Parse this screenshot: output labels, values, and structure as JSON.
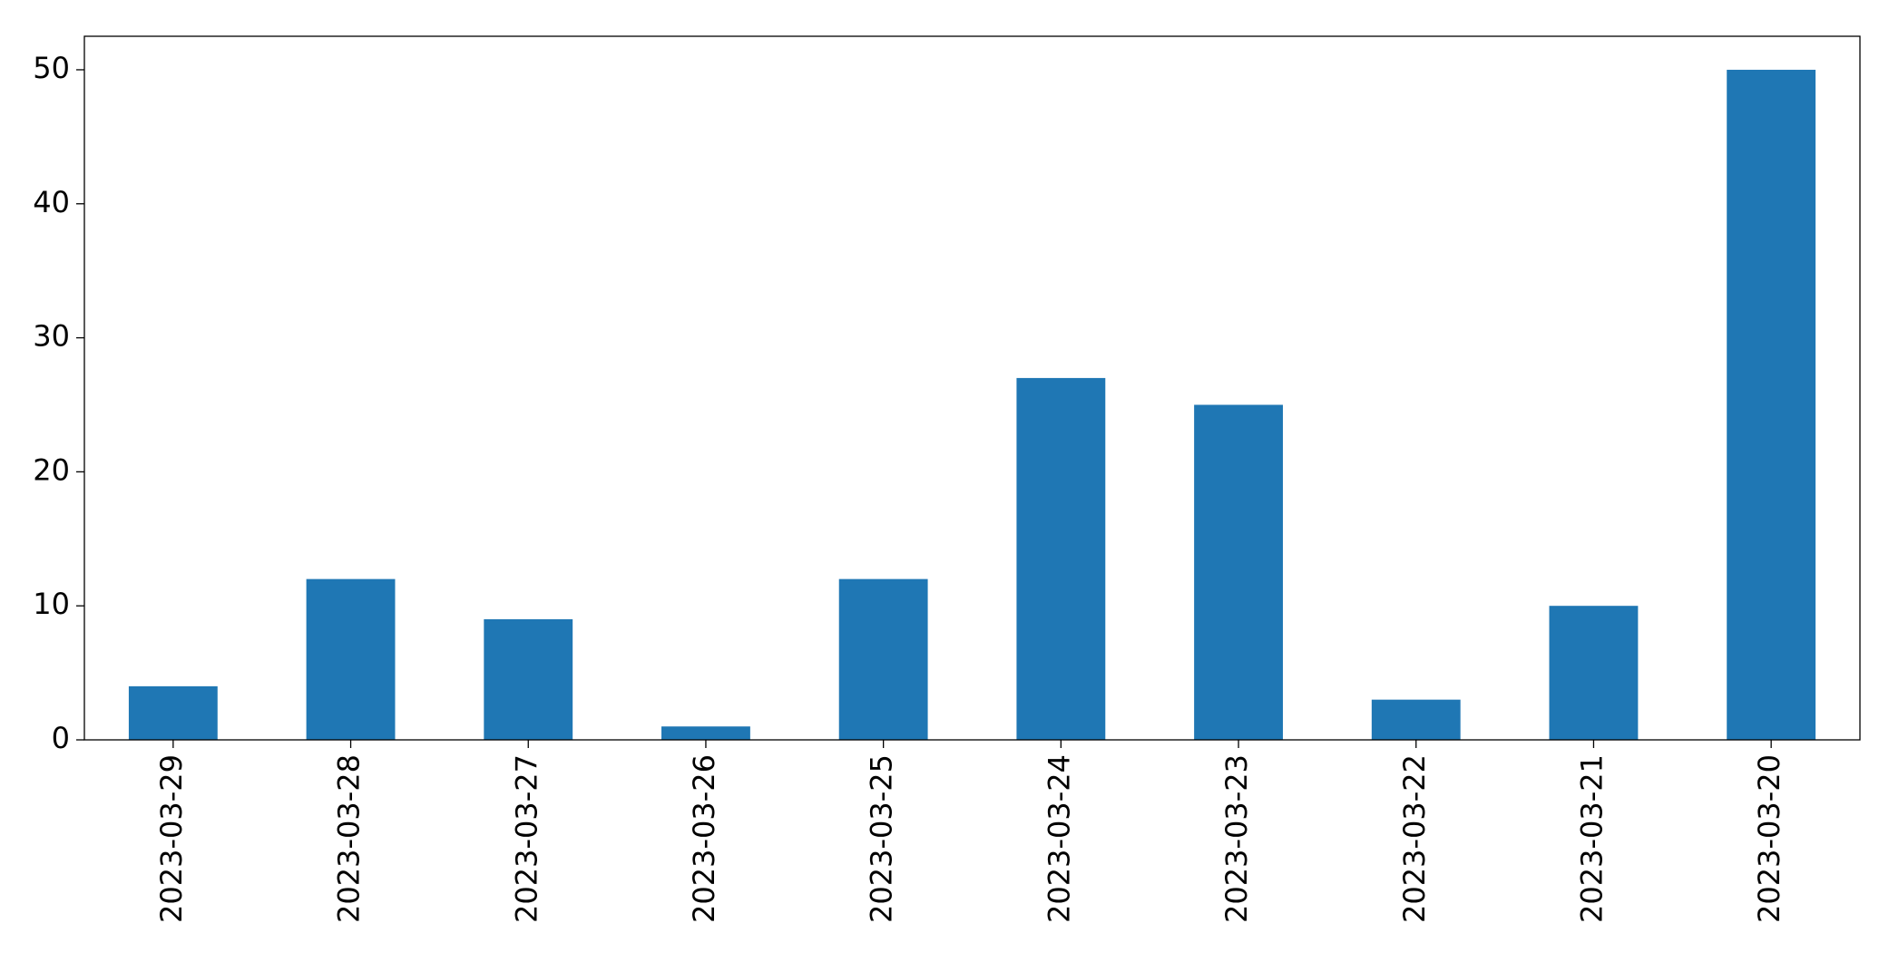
{
  "chart_data": {
    "type": "bar",
    "categories": [
      "2023-03-29",
      "2023-03-28",
      "2023-03-27",
      "2023-03-26",
      "2023-03-25",
      "2023-03-24",
      "2023-03-23",
      "2023-03-22",
      "2023-03-21",
      "2023-03-20"
    ],
    "values": [
      4,
      12,
      9,
      1,
      12,
      27,
      25,
      3,
      10,
      50
    ],
    "color": "#1f77b4",
    "ylim": [
      0,
      52.5
    ],
    "yticks": [
      0,
      10,
      20,
      30,
      40,
      50
    ],
    "grid": false
  }
}
